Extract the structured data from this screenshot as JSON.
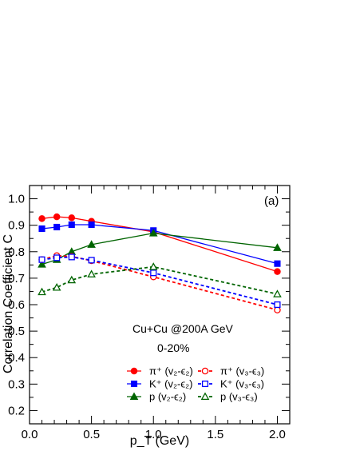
{
  "chart_data": {
    "type": "line",
    "panel_label": "(a)",
    "xlabel": "p_T (GeV)",
    "ylabel": "Correlation Coefficient  C",
    "xlim": [
      0.0,
      2.1
    ],
    "ylim": [
      0.15,
      1.05
    ],
    "xticks": [
      0.0,
      0.5,
      1.0,
      1.5,
      2.0
    ],
    "xtick_labels": [
      "0.0",
      "0.5",
      "1.0",
      "1.5",
      "2.0"
    ],
    "yticks": [
      0.2,
      0.3,
      0.4,
      0.5,
      0.6,
      0.7,
      0.8,
      0.9,
      1.0
    ],
    "ytick_labels": [
      "0.2",
      "0.3",
      "0.4",
      "0.5",
      "0.6",
      "0.7",
      "0.8",
      "0.9",
      "1.0"
    ],
    "grid": false,
    "legend_placement": "bottom-center",
    "annotations": [
      "Cu+Cu @200A GeV",
      "0-20%"
    ],
    "series": [
      {
        "name": "π⁺ (v₂-ϵ₂)",
        "color": "#ff0000",
        "marker": "circle",
        "filled": true,
        "dashed": false,
        "x": [
          0.1,
          0.22,
          0.34,
          0.5,
          1.0,
          2.0
        ],
        "y": [
          0.925,
          0.932,
          0.928,
          0.915,
          0.875,
          0.725
        ]
      },
      {
        "name": "K⁺ (v₂-ϵ₂)",
        "color": "#0000ff",
        "marker": "square",
        "filled": true,
        "dashed": false,
        "x": [
          0.1,
          0.22,
          0.34,
          0.5,
          1.0,
          2.0
        ],
        "y": [
          0.887,
          0.893,
          0.902,
          0.902,
          0.88,
          0.755
        ]
      },
      {
        "name": "p (v₂-ϵ₂)",
        "color": "#006400",
        "marker": "triangle",
        "filled": true,
        "dashed": false,
        "x": [
          0.1,
          0.22,
          0.34,
          0.5,
          1.0,
          2.0
        ],
        "y": [
          0.752,
          0.77,
          0.8,
          0.827,
          0.87,
          0.815
        ]
      },
      {
        "name": "π⁺ (v₃-ϵ₃)",
        "color": "#ff0000",
        "marker": "circle",
        "filled": false,
        "dashed": true,
        "x": [
          0.1,
          0.22,
          0.34,
          0.5,
          1.0,
          2.0
        ],
        "y": [
          0.77,
          0.785,
          0.782,
          0.766,
          0.705,
          0.58
        ]
      },
      {
        "name": "K⁺ (v₃-ϵ₃)",
        "color": "#0000ff",
        "marker": "square",
        "filled": false,
        "dashed": true,
        "x": [
          0.1,
          0.22,
          0.34,
          0.5,
          1.0,
          2.0
        ],
        "y": [
          0.77,
          0.777,
          0.78,
          0.768,
          0.72,
          0.6
        ]
      },
      {
        "name": "p (v₃-ϵ₃)",
        "color": "#006400",
        "marker": "triangle",
        "filled": false,
        "dashed": true,
        "x": [
          0.1,
          0.22,
          0.34,
          0.5,
          1.0,
          2.0
        ],
        "y": [
          0.648,
          0.665,
          0.693,
          0.715,
          0.743,
          0.64
        ]
      }
    ]
  }
}
